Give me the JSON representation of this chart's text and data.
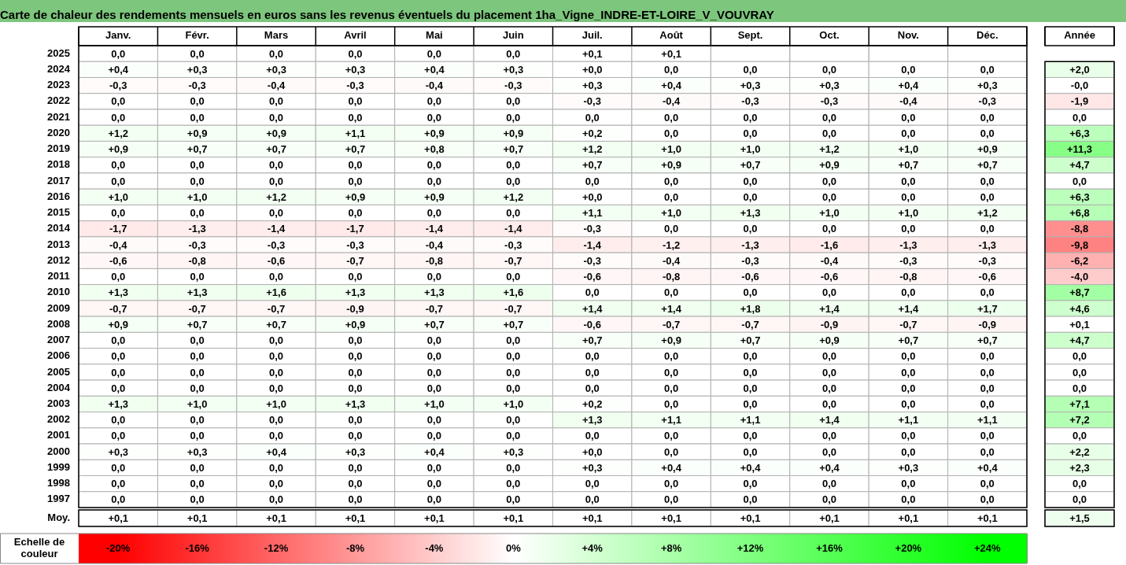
{
  "chart_data": [
    {
      "type": "heatmap",
      "title": "Carte de chaleur des rendements mensuels en euros sans les revenus éventuels du placement 1ha_Vigne_INDRE-ET-LOIRE_V_VOUVRAY",
      "categories": [
        "Janv.",
        "Févr.",
        "Mars",
        "Avril",
        "Mai",
        "Juin",
        "Juil.",
        "Août",
        "Sept.",
        "Oct.",
        "Nov.",
        "Déc."
      ],
      "y_categories": [
        "2025",
        "2024",
        "2023",
        "2022",
        "2021",
        "2020",
        "2019",
        "2018",
        "2017",
        "2016",
        "2015",
        "2014",
        "2013",
        "2012",
        "2011",
        "2010",
        "2009",
        "2008",
        "2007",
        "2006",
        "2005",
        "2004",
        "2003",
        "2002",
        "2001",
        "2000",
        "1999",
        "1998",
        "1997"
      ],
      "cells": [
        [
          0,
          0,
          0,
          0,
          0,
          0,
          0.1,
          0.1,
          null,
          null,
          null,
          null
        ],
        [
          0.4,
          0.3,
          0.3,
          0.3,
          0.4,
          0.3,
          0,
          0,
          0,
          0,
          0,
          0
        ],
        [
          -0.3,
          -0.3,
          -0.4,
          -0.3,
          -0.4,
          -0.3,
          0.3,
          0.4,
          0.3,
          0.3,
          0.4,
          0.3
        ],
        [
          0,
          0,
          0,
          0,
          0,
          0,
          -0.3,
          -0.4,
          -0.3,
          -0.3,
          -0.4,
          -0.3
        ],
        [
          0,
          0,
          0,
          0,
          0,
          0,
          0,
          0,
          0,
          0,
          0,
          0
        ],
        [
          1.2,
          0.9,
          0.9,
          1.1,
          0.9,
          0.9,
          0.2,
          0,
          0,
          0,
          0,
          0
        ],
        [
          0.9,
          0.7,
          0.7,
          0.7,
          0.8,
          0.7,
          1.2,
          1.0,
          1.0,
          1.2,
          1.0,
          0.9
        ],
        [
          0,
          0,
          0,
          0,
          0,
          0,
          0.7,
          0.9,
          0.7,
          0.9,
          0.7,
          0.7
        ],
        [
          0,
          0,
          0,
          0,
          0,
          0,
          0,
          0,
          0,
          0,
          0,
          0
        ],
        [
          1.0,
          1.0,
          1.2,
          0.9,
          0.9,
          1.2,
          0,
          0,
          0,
          0,
          0,
          0
        ],
        [
          0,
          0,
          0,
          0,
          0,
          0,
          1.1,
          1.0,
          1.3,
          1.0,
          1.0,
          1.2
        ],
        [
          -1.7,
          -1.3,
          -1.4,
          -1.7,
          -1.4,
          -1.4,
          -0.3,
          0,
          0,
          0,
          0,
          0
        ],
        [
          -0.4,
          -0.3,
          -0.3,
          -0.3,
          -0.4,
          -0.3,
          -1.4,
          -1.2,
          -1.3,
          -1.6,
          -1.3,
          -1.3
        ],
        [
          -0.6,
          -0.8,
          -0.6,
          -0.7,
          -0.8,
          -0.7,
          -0.3,
          -0.4,
          -0.3,
          -0.4,
          -0.3,
          -0.3
        ],
        [
          0,
          0,
          0,
          0,
          0,
          0,
          -0.6,
          -0.8,
          -0.6,
          -0.6,
          -0.8,
          -0.6
        ],
        [
          1.3,
          1.3,
          1.6,
          1.3,
          1.3,
          1.6,
          0,
          0,
          0,
          0,
          0,
          0
        ],
        [
          -0.7,
          -0.7,
          -0.7,
          -0.9,
          -0.7,
          -0.7,
          1.4,
          1.4,
          1.8,
          1.4,
          1.4,
          1.7
        ],
        [
          0.9,
          0.7,
          0.7,
          0.9,
          0.7,
          0.7,
          -0.6,
          -0.7,
          -0.7,
          -0.9,
          -0.7,
          -0.9
        ],
        [
          0,
          0,
          0,
          0,
          0,
          0,
          0.7,
          0.9,
          0.7,
          0.9,
          0.7,
          0.7
        ],
        [
          0,
          0,
          0,
          0,
          0,
          0,
          0,
          0,
          0,
          0,
          0,
          0
        ],
        [
          0,
          0,
          0,
          0,
          0,
          0,
          0,
          0,
          0,
          0,
          0,
          0
        ],
        [
          0,
          0,
          0,
          0,
          0,
          0,
          0,
          0,
          0,
          0,
          0,
          0
        ],
        [
          1.3,
          1.0,
          1.0,
          1.3,
          1.0,
          1.0,
          0.2,
          0,
          0,
          0,
          0,
          0
        ],
        [
          0,
          0,
          0,
          0,
          0,
          0,
          1.3,
          1.1,
          1.1,
          1.4,
          1.1,
          1.1
        ],
        [
          0,
          0,
          0,
          0,
          0,
          0,
          0,
          0,
          0,
          0,
          0,
          0
        ],
        [
          0.3,
          0.3,
          0.4,
          0.3,
          0.4,
          0.3,
          0,
          0,
          0,
          0,
          0,
          0
        ],
        [
          0,
          0,
          0,
          0,
          0,
          0,
          0.3,
          0.4,
          0.4,
          0.4,
          0.3,
          0.4
        ],
        [
          0,
          0,
          0,
          0,
          0,
          0,
          0,
          0,
          0,
          0,
          0,
          0
        ],
        [
          0,
          0,
          0,
          0,
          0,
          0,
          0,
          0,
          0,
          0,
          0,
          0
        ]
      ],
      "cell_labels": [
        [
          "0,0",
          "0,0",
          "0,0",
          "0,0",
          "0,0",
          "0,0",
          "+0,1",
          "+0,1",
          null,
          null,
          null,
          null
        ],
        [
          "+0,4",
          "+0,3",
          "+0,3",
          "+0,3",
          "+0,4",
          "+0,3",
          "+0,0",
          "0,0",
          "0,0",
          "0,0",
          "0,0",
          "0,0"
        ],
        [
          "-0,3",
          "-0,3",
          "-0,4",
          "-0,3",
          "-0,4",
          "-0,3",
          "+0,3",
          "+0,4",
          "+0,3",
          "+0,3",
          "+0,4",
          "+0,3"
        ],
        [
          "0,0",
          "0,0",
          "0,0",
          "0,0",
          "0,0",
          "0,0",
          "-0,3",
          "-0,4",
          "-0,3",
          "-0,3",
          "-0,4",
          "-0,3"
        ],
        [
          "0,0",
          "0,0",
          "0,0",
          "0,0",
          "0,0",
          "0,0",
          "0,0",
          "0,0",
          "0,0",
          "0,0",
          "0,0",
          "0,0"
        ],
        [
          "+1,2",
          "+0,9",
          "+0,9",
          "+1,1",
          "+0,9",
          "+0,9",
          "+0,2",
          "0,0",
          "0,0",
          "0,0",
          "0,0",
          "0,0"
        ],
        [
          "+0,9",
          "+0,7",
          "+0,7",
          "+0,7",
          "+0,8",
          "+0,7",
          "+1,2",
          "+1,0",
          "+1,0",
          "+1,2",
          "+1,0",
          "+0,9"
        ],
        [
          "0,0",
          "0,0",
          "0,0",
          "0,0",
          "0,0",
          "0,0",
          "+0,7",
          "+0,9",
          "+0,7",
          "+0,9",
          "+0,7",
          "+0,7"
        ],
        [
          "0,0",
          "0,0",
          "0,0",
          "0,0",
          "0,0",
          "0,0",
          "0,0",
          "0,0",
          "0,0",
          "0,0",
          "0,0",
          "0,0"
        ],
        [
          "+1,0",
          "+1,0",
          "+1,2",
          "+0,9",
          "+0,9",
          "+1,2",
          "+0,0",
          "0,0",
          "0,0",
          "0,0",
          "0,0",
          "0,0"
        ],
        [
          "0,0",
          "0,0",
          "0,0",
          "0,0",
          "0,0",
          "0,0",
          "+1,1",
          "+1,0",
          "+1,3",
          "+1,0",
          "+1,0",
          "+1,2"
        ],
        [
          "-1,7",
          "-1,3",
          "-1,4",
          "-1,7",
          "-1,4",
          "-1,4",
          "-0,3",
          "0,0",
          "0,0",
          "0,0",
          "0,0",
          "0,0"
        ],
        [
          "-0,4",
          "-0,3",
          "-0,3",
          "-0,3",
          "-0,4",
          "-0,3",
          "-1,4",
          "-1,2",
          "-1,3",
          "-1,6",
          "-1,3",
          "-1,3"
        ],
        [
          "-0,6",
          "-0,8",
          "-0,6",
          "-0,7",
          "-0,8",
          "-0,7",
          "-0,3",
          "-0,4",
          "-0,3",
          "-0,4",
          "-0,3",
          "-0,3"
        ],
        [
          "0,0",
          "0,0",
          "0,0",
          "0,0",
          "0,0",
          "0,0",
          "-0,6",
          "-0,8",
          "-0,6",
          "-0,6",
          "-0,8",
          "-0,6"
        ],
        [
          "+1,3",
          "+1,3",
          "+1,6",
          "+1,3",
          "+1,3",
          "+1,6",
          "0,0",
          "0,0",
          "0,0",
          "0,0",
          "0,0",
          "0,0"
        ],
        [
          "-0,7",
          "-0,7",
          "-0,7",
          "-0,9",
          "-0,7",
          "-0,7",
          "+1,4",
          "+1,4",
          "+1,8",
          "+1,4",
          "+1,4",
          "+1,7"
        ],
        [
          "+0,9",
          "+0,7",
          "+0,7",
          "+0,9",
          "+0,7",
          "+0,7",
          "-0,6",
          "-0,7",
          "-0,7",
          "-0,9",
          "-0,7",
          "-0,9"
        ],
        [
          "0,0",
          "0,0",
          "0,0",
          "0,0",
          "0,0",
          "0,0",
          "+0,7",
          "+0,9",
          "+0,7",
          "+0,9",
          "+0,7",
          "+0,7"
        ],
        [
          "0,0",
          "0,0",
          "0,0",
          "0,0",
          "0,0",
          "0,0",
          "0,0",
          "0,0",
          "0,0",
          "0,0",
          "0,0",
          "0,0"
        ],
        [
          "0,0",
          "0,0",
          "0,0",
          "0,0",
          "0,0",
          "0,0",
          "0,0",
          "0,0",
          "0,0",
          "0,0",
          "0,0",
          "0,0"
        ],
        [
          "0,0",
          "0,0",
          "0,0",
          "0,0",
          "0,0",
          "0,0",
          "0,0",
          "0,0",
          "0,0",
          "0,0",
          "0,0",
          "0,0"
        ],
        [
          "+1,3",
          "+1,0",
          "+1,0",
          "+1,3",
          "+1,0",
          "+1,0",
          "+0,2",
          "0,0",
          "0,0",
          "0,0",
          "0,0",
          "0,0"
        ],
        [
          "0,0",
          "0,0",
          "0,0",
          "0,0",
          "0,0",
          "0,0",
          "+1,3",
          "+1,1",
          "+1,1",
          "+1,4",
          "+1,1",
          "+1,1"
        ],
        [
          "0,0",
          "0,0",
          "0,0",
          "0,0",
          "0,0",
          "0,0",
          "0,0",
          "0,0",
          "0,0",
          "0,0",
          "0,0",
          "0,0"
        ],
        [
          "+0,3",
          "+0,3",
          "+0,4",
          "+0,3",
          "+0,4",
          "+0,3",
          "+0,0",
          "0,0",
          "0,0",
          "0,0",
          "0,0",
          "0,0"
        ],
        [
          "0,0",
          "0,0",
          "0,0",
          "0,0",
          "0,0",
          "0,0",
          "+0,3",
          "+0,4",
          "+0,4",
          "+0,4",
          "+0,3",
          "+0,4"
        ],
        [
          "0,0",
          "0,0",
          "0,0",
          "0,0",
          "0,0",
          "0,0",
          "0,0",
          "0,0",
          "0,0",
          "0,0",
          "0,0",
          "0,0"
        ],
        [
          "0,0",
          "0,0",
          "0,0",
          "0,0",
          "0,0",
          "0,0",
          "0,0",
          "0,0",
          "0,0",
          "0,0",
          "0,0",
          "0,0"
        ]
      ],
      "clabel": "Echelle de couleur",
      "clim": [
        -22,
        26
      ],
      "cticks": [
        {
          "value": -20,
          "label": "-20%"
        },
        {
          "value": -16,
          "label": "-16%"
        },
        {
          "value": -12,
          "label": "-12%"
        },
        {
          "value": -8,
          "label": "-8%"
        },
        {
          "value": -4,
          "label": "-4%"
        },
        {
          "value": 0,
          "label": "0%"
        },
        {
          "value": 4,
          "label": "+4%"
        },
        {
          "value": 8,
          "label": "+8%"
        },
        {
          "value": 12,
          "label": "+12%"
        },
        {
          "value": 16,
          "label": "+16%"
        },
        {
          "value": 20,
          "label": "+20%"
        },
        {
          "value": 24,
          "label": "+24%"
        }
      ]
    },
    {
      "type": "heatmap",
      "categories": [
        "Année"
      ],
      "y_categories": [
        null,
        null,
        null,
        null,
        null,
        null,
        null,
        null,
        null,
        null,
        null,
        null,
        null,
        null,
        null,
        null,
        null,
        null,
        null,
        null,
        null,
        null,
        null,
        null,
        null,
        null,
        null,
        null
      ],
      "cells": [
        [
          2.0
        ],
        [
          0
        ],
        [
          -1.9
        ],
        [
          0
        ],
        [
          6.3
        ],
        [
          11.3
        ],
        [
          4.7
        ],
        [
          0
        ],
        [
          6.3
        ],
        [
          6.8
        ],
        [
          -8.8
        ],
        [
          -9.8
        ],
        [
          -6.2
        ],
        [
          -4.0
        ],
        [
          8.7
        ],
        [
          4.6
        ],
        [
          0.1
        ],
        [
          4.7
        ],
        [
          0
        ],
        [
          0
        ],
        [
          0
        ],
        [
          7.1
        ],
        [
          7.2
        ],
        [
          0
        ],
        [
          2.2
        ],
        [
          2.3
        ],
        [
          0
        ],
        [
          0
        ]
      ],
      "cell_labels": [
        [
          "+2,0"
        ],
        [
          "-0,0"
        ],
        [
          "-1,9"
        ],
        [
          "0,0"
        ],
        [
          "+6,3"
        ],
        [
          "+11,3"
        ],
        [
          "+4,7"
        ],
        [
          "0,0"
        ],
        [
          "+6,3"
        ],
        [
          "+6,8"
        ],
        [
          "-8,8"
        ],
        [
          "-9,8"
        ],
        [
          "-6,2"
        ],
        [
          "-4,0"
        ],
        [
          "+8,7"
        ],
        [
          "+4,6"
        ],
        [
          "+0,1"
        ],
        [
          "+4,7"
        ],
        [
          "0,0"
        ],
        [
          "0,0"
        ],
        [
          "0,0"
        ],
        [
          "+7,1"
        ],
        [
          "+7,2"
        ],
        [
          "0,0"
        ],
        [
          "+2,2"
        ],
        [
          "+2,3"
        ],
        [
          "0,0"
        ],
        [
          "0,0"
        ]
      ],
      "tick_labels": "x"
    },
    {
      "type": "heatmap",
      "categories": [
        null,
        null,
        null,
        null,
        null,
        null,
        null,
        null,
        null,
        null,
        null,
        null
      ],
      "y_categories": [
        "Moy."
      ],
      "cells": [
        [
          0.1,
          0.1,
          0.1,
          0.1,
          0.1,
          0.1,
          0.1,
          0.1,
          0.1,
          0.1,
          0.1,
          0.1
        ]
      ],
      "cell_labels": [
        [
          "+0,1",
          "+0,1",
          "+0,1",
          "+0,1",
          "+0,1",
          "+0,1",
          "+0,1",
          "+0,1",
          "+0,1",
          "+0,1",
          "+0,1",
          "+0,1"
        ]
      ],
      "tick_labels": "y"
    },
    {
      "type": "heatmap",
      "categories": [
        null
      ],
      "y_categories": [
        null
      ],
      "cells": [
        [
          1.5
        ]
      ],
      "cell_labels": [
        [
          "+1,5"
        ]
      ],
      "tick_labels": false
    }
  ]
}
